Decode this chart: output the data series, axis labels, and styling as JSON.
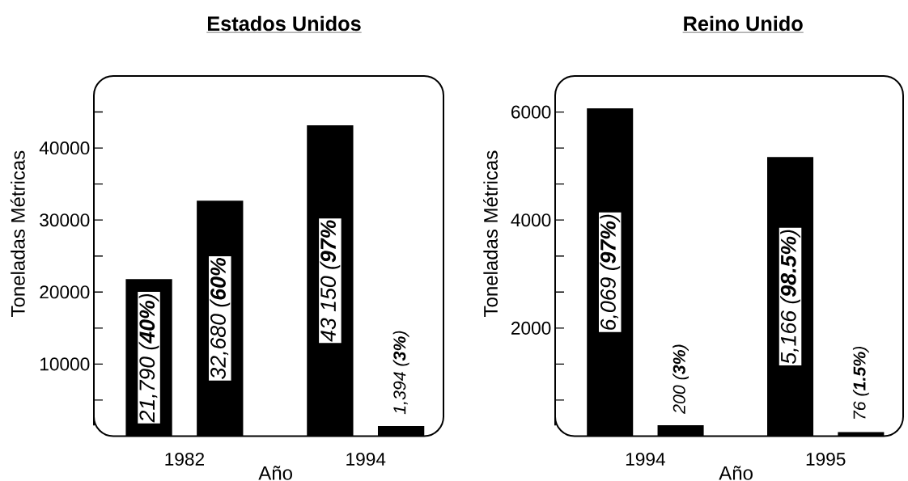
{
  "chart_data": [
    {
      "type": "bar",
      "title": "Estados Unidos",
      "xlabel": "Año",
      "ylabel": "Toneladas Métricas",
      "categories": [
        "1982",
        "1994"
      ],
      "series": [
        {
          "color": "#000000",
          "values": [
            21790,
            43150
          ],
          "value_labels": [
            "21,790 (**40%**)",
            "43 150 (**97%**"
          ]
        },
        {
          "color": "#000000",
          "values": [
            32680,
            1394
          ],
          "value_labels": [
            "32,680 (**60%**",
            "1,394 (**3%**)"
          ]
        }
      ],
      "ylim": [
        0,
        50000
      ],
      "yticks": [
        {
          "value": 5000,
          "label": null
        },
        10000,
        {
          "value": 15000,
          "label": null
        },
        20000,
        {
          "value": 25000,
          "label": null
        },
        30000,
        {
          "value": 35000,
          "label": null
        },
        40000,
        {
          "value": 45000,
          "label": null
        }
      ]
    },
    {
      "type": "bar",
      "title": "Reino Unido",
      "xlabel": "Año",
      "ylabel": "Toneladas Métricas",
      "categories": [
        "1994",
        "1995"
      ],
      "series": [
        {
          "color": "#000000",
          "values": [
            6069,
            5166
          ],
          "value_labels": [
            "6,069 (**97%**)",
            "5,166 (**98.5%**)"
          ]
        },
        {
          "color": "#000000",
          "values": [
            200,
            76
          ],
          "value_labels": [
            "200 (**3%**)",
            "76 (**1.5%**)"
          ]
        }
      ],
      "ylim": [
        0,
        6667
      ],
      "yticks": [
        {
          "value": 667,
          "label": null
        },
        {
          "value": 1333,
          "label": null
        },
        2000,
        {
          "value": 2667,
          "label": null
        },
        {
          "value": 3333,
          "label": null
        },
        4000,
        {
          "value": 4667,
          "label": null
        },
        {
          "value": 5333,
          "label": null
        },
        6000
      ]
    }
  ]
}
